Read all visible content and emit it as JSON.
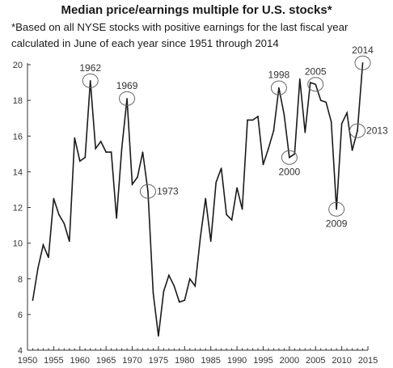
{
  "chart_data": {
    "type": "line",
    "title": "Median price/earnings multiple for U.S. stocks*",
    "subtitle": "*Based on all NYSE stocks with positive earnings for the last fiscal year calculated in June of each year since 1951 through 2014",
    "xlabel": "",
    "ylabel": "",
    "xlim": [
      1950,
      2015
    ],
    "ylim": [
      4,
      20
    ],
    "x_ticks": [
      1950,
      1955,
      1960,
      1965,
      1970,
      1975,
      1980,
      1985,
      1990,
      1995,
      2000,
      2005,
      2010,
      2015
    ],
    "y_ticks": [
      4,
      6,
      8,
      10,
      12,
      14,
      16,
      18,
      20
    ],
    "grid": false,
    "line_color": "#1a1a1a",
    "series": [
      {
        "x": [
          1951,
          1952,
          1953,
          1954,
          1955,
          1956,
          1957,
          1958,
          1959,
          1960,
          1961,
          1962,
          1963,
          1964,
          1965,
          1966,
          1967,
          1968,
          1969,
          1970,
          1971,
          1972,
          1973,
          1974,
          1975,
          1976,
          1977,
          1978,
          1979,
          1980,
          1981,
          1982,
          1983,
          1984,
          1985,
          1986,
          1987,
          1988,
          1989,
          1990,
          1991,
          1992,
          1993,
          1994,
          1995,
          1996,
          1997,
          1998,
          1999,
          2000,
          2001,
          2002,
          2003,
          2004,
          2005,
          2006,
          2007,
          2008,
          2009,
          2010,
          2011,
          2012,
          2013,
          2014
        ],
        "values": [
          6.8,
          8.6,
          9.9,
          9.2,
          12.5,
          11.6,
          11.1,
          10.1,
          15.9,
          14.6,
          14.8,
          19.1,
          15.3,
          15.7,
          15.1,
          15.1,
          11.4,
          15.3,
          18.1,
          13.3,
          13.7,
          15.1,
          12.9,
          7.2,
          4.8,
          7.3,
          8.2,
          7.6,
          6.7,
          6.8,
          8.0,
          7.6,
          10.3,
          12.5,
          10.1,
          13.4,
          14.2,
          11.6,
          11.3,
          13.1,
          11.9,
          16.9,
          16.9,
          17.1,
          14.4,
          15.3,
          16.3,
          18.7,
          17.2,
          14.8,
          15.0,
          19.2,
          16.2,
          19.0,
          18.9,
          18.0,
          17.9,
          16.8,
          11.9,
          16.7,
          17.3,
          15.2,
          16.3,
          20.1
        ]
      }
    ],
    "annotations": [
      {
        "year": 1962,
        "label": "1962",
        "value": 19.1,
        "position": "above"
      },
      {
        "year": 1969,
        "label": "1969",
        "value": 18.1,
        "position": "above"
      },
      {
        "year": 1973,
        "label": "1973",
        "value": 12.9,
        "position": "right"
      },
      {
        "year": 1998,
        "label": "1998",
        "value": 18.7,
        "position": "above"
      },
      {
        "year": 2000,
        "label": "2000",
        "value": 14.8,
        "position": "below"
      },
      {
        "year": 2005,
        "label": "2005",
        "value": 18.9,
        "position": "above"
      },
      {
        "year": 2009,
        "label": "2009",
        "value": 11.9,
        "position": "below"
      },
      {
        "year": 2013,
        "label": "2013",
        "value": 16.3,
        "position": "right"
      },
      {
        "year": 2014,
        "label": "2014",
        "value": 20.1,
        "position": "above"
      }
    ]
  }
}
